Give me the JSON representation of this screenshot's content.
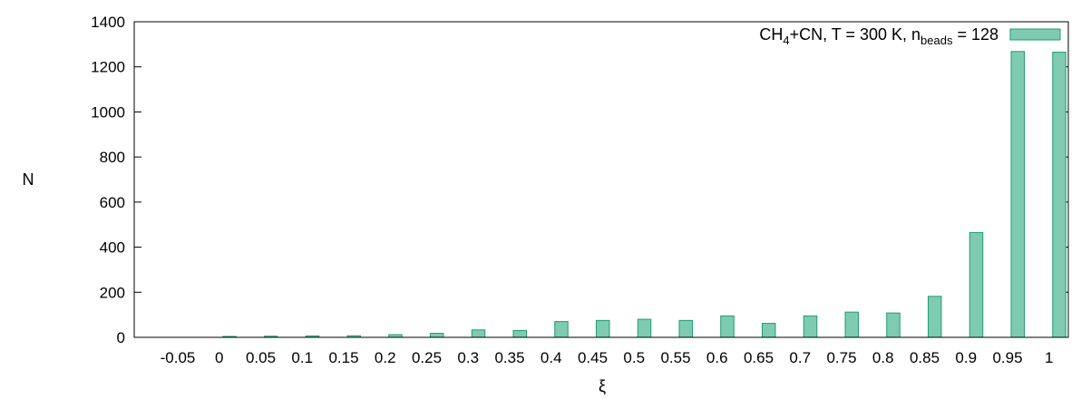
{
  "chart_data": {
    "type": "bar",
    "xlabel": "ξ",
    "ylabel": "N",
    "ylim": [
      0,
      1400
    ],
    "yticks": [
      0,
      200,
      400,
      600,
      800,
      1000,
      1200,
      1400
    ],
    "grid": false,
    "legend_position": "top-right",
    "bar_color": "#7FCBB2",
    "bar_edge_color": "#1E9C73",
    "categories": [
      "-0.05",
      "0",
      "0.05",
      "0.1",
      "0.15",
      "0.2",
      "0.25",
      "0.3",
      "0.35",
      "0.4",
      "0.45",
      "0.5",
      "0.55",
      "0.6",
      "0.65",
      "0.7",
      "0.75",
      "0.8",
      "0.85",
      "0.9",
      "0.95",
      "1"
    ],
    "series": [
      {
        "legend": {
          "prefix": "CH",
          "sub1": "4",
          "mid": "+CN, T = 300 K, n",
          "sub2": "beads",
          "suffix": " = 128"
        },
        "values": [
          0,
          4,
          5,
          6,
          7,
          12,
          18,
          33,
          30,
          70,
          75,
          80,
          75,
          95,
          62,
          95,
          112,
          108,
          182,
          465,
          1268,
          1265
        ]
      }
    ]
  }
}
